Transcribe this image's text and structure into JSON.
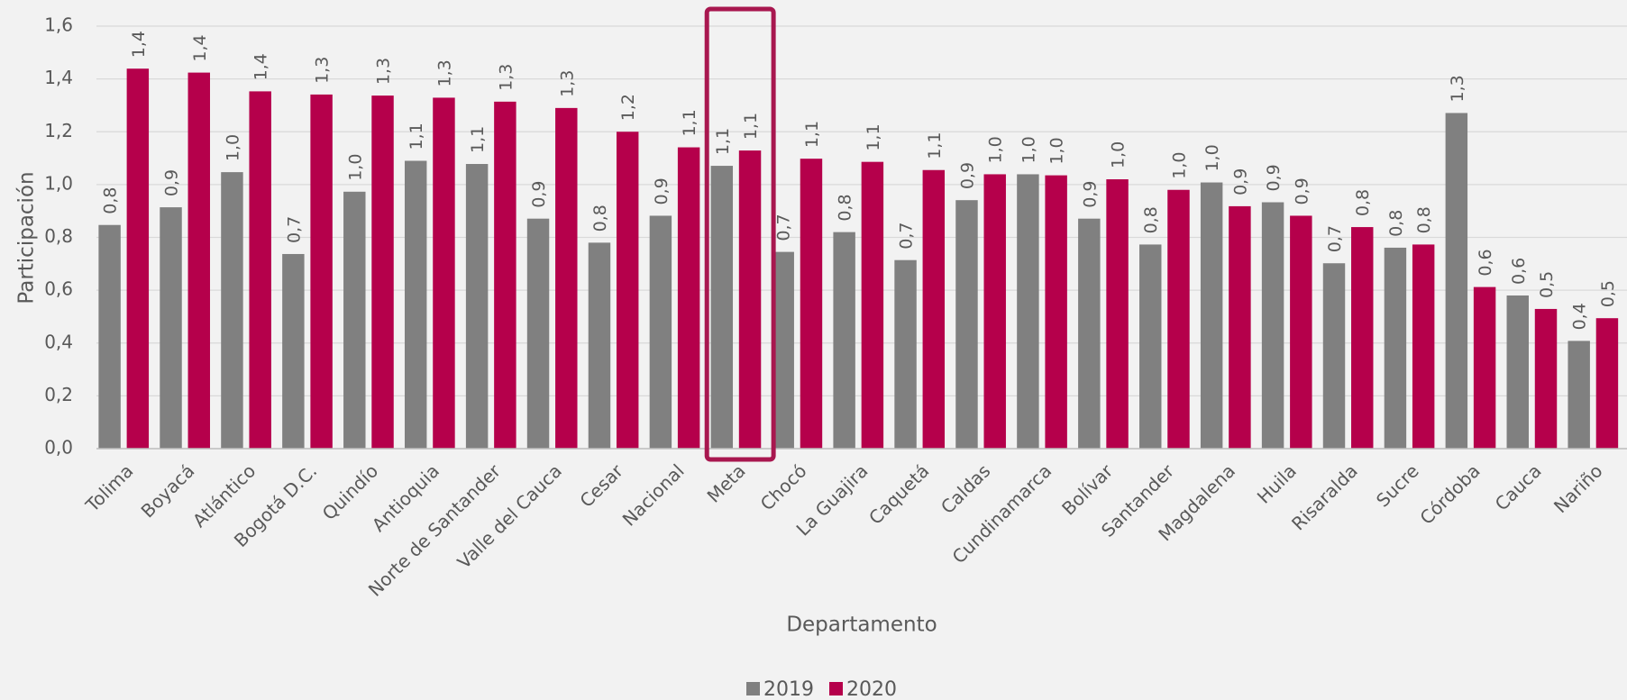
{
  "chart_data": {
    "type": "bar",
    "y_label": "Participación",
    "x_label": "Departamento",
    "categories": [
      "Tolima",
      "Boyacá",
      "Atlántico",
      "Bogotá D.C.",
      "Quindío",
      "Antioquia",
      "Norte de Santander",
      "Valle del Cauca",
      "Cesar",
      "Nacional",
      "Meta",
      "Chocó",
      "La Guajira",
      "Caquetá",
      "Caldas",
      "Cundinamarca",
      "Bolívar",
      "Santander",
      "Magdalena",
      "Huila",
      "Risaralda",
      "Sucre",
      "Córdoba",
      "Cauca",
      "Nariño"
    ],
    "series": [
      {
        "name": "2019",
        "color": "#808080",
        "values": [
          0.847,
          0.914,
          1.047,
          0.737,
          0.973,
          1.09,
          1.078,
          0.871,
          0.78,
          0.882,
          1.071,
          0.745,
          0.82,
          0.714,
          0.941,
          1.039,
          0.871,
          0.773,
          1.008,
          0.933,
          0.702,
          0.761,
          1.271,
          0.58,
          0.408
        ],
        "value_labels": [
          "0,8",
          "0,9",
          "1,0",
          "0,7",
          "1,0",
          "1,1",
          "1,1",
          "0,9",
          "0,8",
          "0,9",
          "1,1",
          "0,7",
          "0,8",
          "0,7",
          "0,9",
          "1,0",
          "0,9",
          "0,8",
          "1,0",
          "0,9",
          "0,7",
          "0,8",
          "1,3",
          "0,6",
          "0,4"
        ]
      },
      {
        "name": "2020",
        "color": "#b5004b",
        "values": [
          1.439,
          1.424,
          1.353,
          1.341,
          1.337,
          1.329,
          1.314,
          1.29,
          1.2,
          1.141,
          1.129,
          1.098,
          1.086,
          1.055,
          1.039,
          1.035,
          1.02,
          0.98,
          0.918,
          0.882,
          0.839,
          0.773,
          0.612,
          0.529,
          0.494
        ],
        "value_labels": [
          "1,4",
          "1,4",
          "1,4",
          "1,3",
          "1,3",
          "1,3",
          "1,3",
          "1,3",
          "1,2",
          "1,1",
          "1,1",
          "1,1",
          "1,1",
          "1,1",
          "1,0",
          "1,0",
          "1,0",
          "1,0",
          "0,9",
          "0,9",
          "0,8",
          "0,8",
          "0,6",
          "0,5",
          "0,5"
        ]
      }
    ],
    "ylim": [
      0,
      1.6
    ],
    "yticks": [
      {
        "value": 0,
        "label": "0,0"
      },
      {
        "value": 0.2,
        "label": "0,2"
      },
      {
        "value": 0.4,
        "label": "0,4"
      },
      {
        "value": 0.6,
        "label": "0,6"
      },
      {
        "value": 0.8,
        "label": "0,8"
      },
      {
        "value": 1.0,
        "label": "1,0"
      },
      {
        "value": 1.2,
        "label": "1,2"
      },
      {
        "value": 1.4,
        "label": "1,4"
      },
      {
        "value": 1.6,
        "label": "1,6"
      }
    ],
    "grid": true
  }
}
